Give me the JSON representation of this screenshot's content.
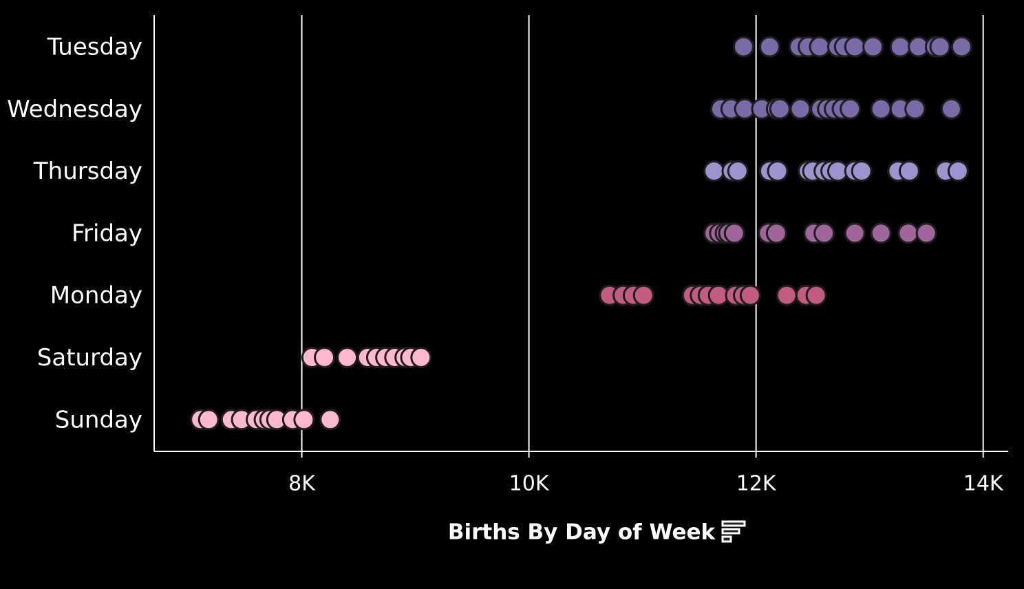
{
  "chart_data": {
    "type": "strip",
    "x_label": "Births By Day of Week",
    "xlim": [
      6700,
      14220
    ],
    "xticks": [
      {
        "value": 8000,
        "label": "8K"
      },
      {
        "value": 10000,
        "label": "10K"
      },
      {
        "value": 12000,
        "label": "12K"
      },
      {
        "value": 14000,
        "label": "14K"
      }
    ],
    "grid": true,
    "series": [
      {
        "name": "Tuesday",
        "color": "#7b6aa8",
        "values": [
          11890,
          12120,
          12380,
          12460,
          12560,
          12720,
          12780,
          12870,
          13030,
          13270,
          13430,
          13580,
          13620,
          13810
        ]
      },
      {
        "name": "Wednesday",
        "color": "#7b6aa8",
        "values": [
          11690,
          11780,
          11900,
          12050,
          12180,
          12210,
          12390,
          12570,
          12630,
          12690,
          12760,
          12830,
          13100,
          13270,
          13400,
          13720
        ]
      },
      {
        "name": "Thursday",
        "color": "#9e93cf",
        "values": [
          11630,
          11790,
          11840,
          12120,
          12190,
          12460,
          12500,
          12600,
          12660,
          12720,
          12870,
          12930,
          13250,
          13350,
          13670,
          13780
        ]
      },
      {
        "name": "Friday",
        "color": "#a0659a",
        "values": [
          11630,
          11680,
          11730,
          11760,
          11810,
          12110,
          12180,
          12510,
          12600,
          12870,
          13100,
          13340,
          13500
        ]
      },
      {
        "name": "Monday",
        "color": "#c35c83",
        "values": [
          10710,
          10830,
          10920,
          11010,
          11440,
          11510,
          11580,
          11670,
          11820,
          11890,
          11950,
          12270,
          12440,
          12530
        ]
      },
      {
        "name": "Saturday",
        "color": "#ffb8cf",
        "values": [
          8090,
          8200,
          8400,
          8580,
          8660,
          8740,
          8820,
          8910,
          8960,
          9050
        ]
      },
      {
        "name": "Sunday",
        "color": "#ffb8cf",
        "values": [
          7110,
          7180,
          7380,
          7470,
          7600,
          7670,
          7720,
          7780,
          7920,
          8020,
          8250
        ]
      }
    ]
  }
}
